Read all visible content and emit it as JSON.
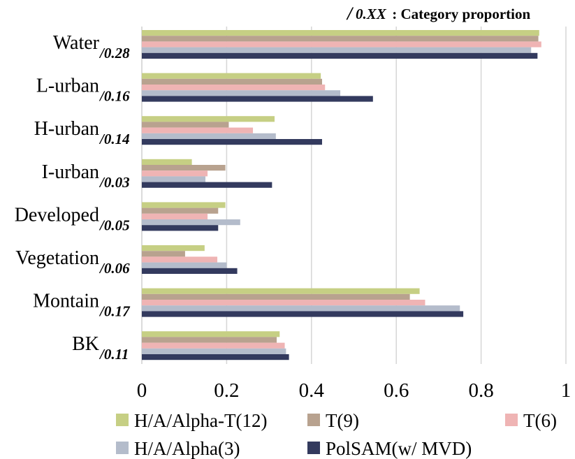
{
  "chart_data": {
    "type": "bar",
    "orientation": "horizontal",
    "annotation": {
      "slash": "/",
      "placeholder": "0.XX",
      "text": " : Category proportion"
    },
    "categories": [
      "Water",
      "L-urban",
      "H-urban",
      "I-urban",
      "Developed",
      "Vegetation",
      "Montain",
      "BK"
    ],
    "category_proportions": [
      "/0.28",
      "/0.16",
      "/0.14",
      "/0.03",
      "/0.05",
      "/0.06",
      "/0.17",
      "/0.11"
    ],
    "series": [
      {
        "name": "H/A/Alpha-T(12)",
        "color": "#c6cf84",
        "values": [
          0.937,
          0.422,
          0.313,
          0.118,
          0.197,
          0.148,
          0.655,
          0.325
        ]
      },
      {
        "name": "T(9)",
        "color": "#b8a28f",
        "values": [
          0.935,
          0.425,
          0.205,
          0.197,
          0.18,
          0.102,
          0.632,
          0.318
        ]
      },
      {
        "name": "T(6)",
        "color": "#efb4b4",
        "values": [
          0.942,
          0.432,
          0.262,
          0.155,
          0.155,
          0.178,
          0.668,
          0.337
        ]
      },
      {
        "name": "H/A/Alpha(3)",
        "color": "#b4bccb",
        "values": [
          0.918,
          0.468,
          0.316,
          0.15,
          0.232,
          0.2,
          0.75,
          0.34
        ]
      },
      {
        "name": "PolSAM(w/ MVD)",
        "color": "#333a5e",
        "values": [
          0.933,
          0.545,
          0.425,
          0.307,
          0.18,
          0.225,
          0.758,
          0.347
        ]
      }
    ],
    "x_ticks": [
      "0",
      "0.2",
      "0.4",
      "0.6",
      "0.8",
      "1"
    ],
    "xlim": [
      0,
      1
    ],
    "grid": "vertical",
    "legend_position": "bottom"
  }
}
